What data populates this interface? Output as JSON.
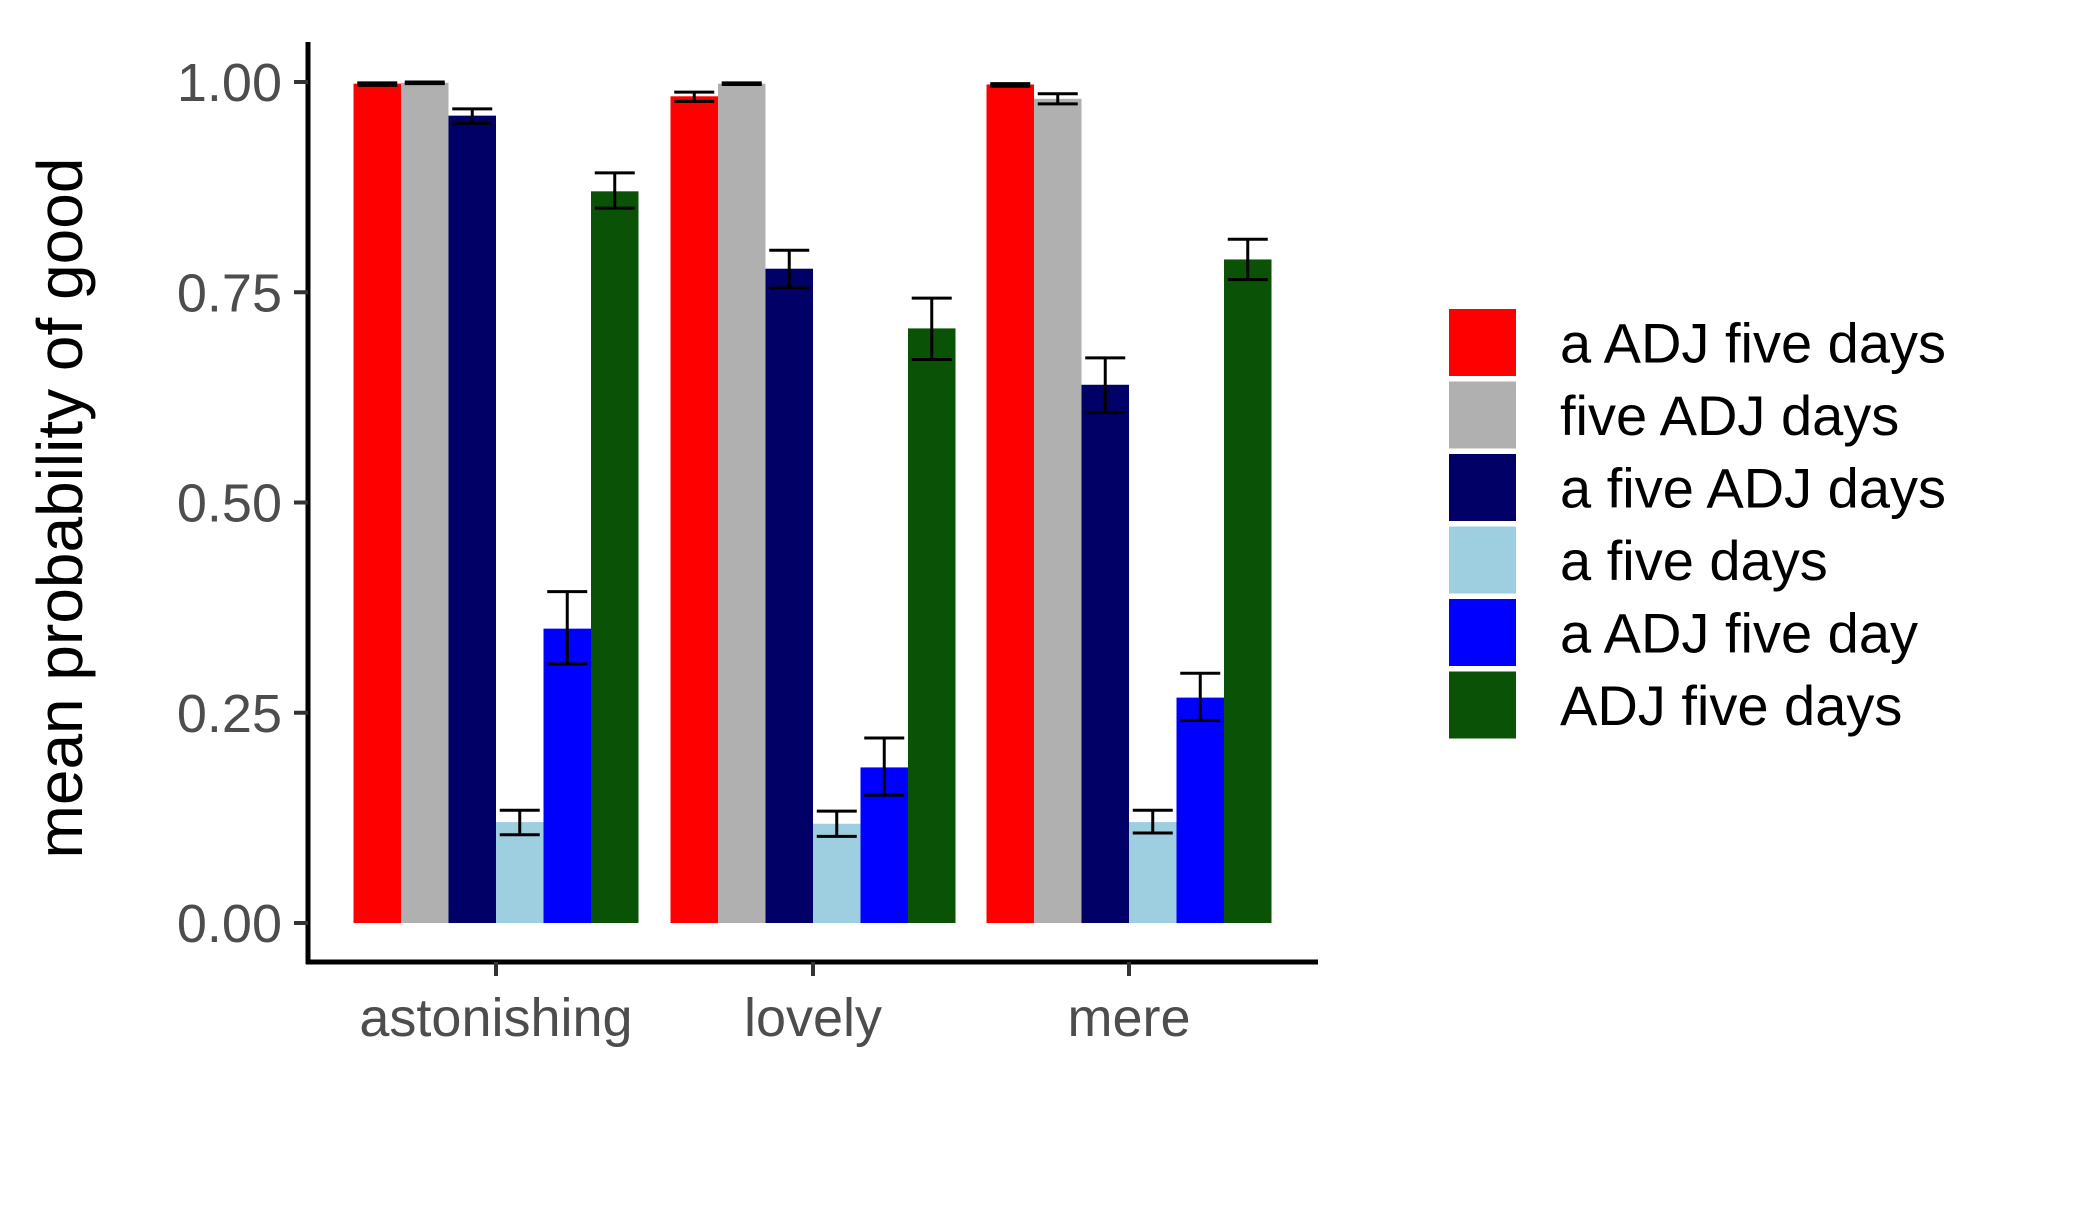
{
  "chart_data": {
    "type": "bar",
    "title": "",
    "xlabel": "",
    "ylabel": "mean probability of good",
    "ylim": [
      0,
      1.0
    ],
    "yticks": [
      "0.00",
      "0.25",
      "0.50",
      "0.75",
      "1.00"
    ],
    "categories": [
      "astonishing",
      "lovely",
      "mere"
    ],
    "grid": false,
    "legend_position": "right",
    "series": [
      {
        "name": "a ADJ five days",
        "color": "#ff0000",
        "values": [
          0.998,
          0.983,
          0.997
        ],
        "err_low": [
          0.996,
          0.977,
          0.995
        ],
        "err_high": [
          0.999,
          0.988,
          0.998
        ]
      },
      {
        "name": "five ADJ days",
        "color": "#b0b0b0",
        "values": [
          0.999,
          0.998,
          0.98
        ],
        "err_low": [
          0.998,
          0.997,
          0.974
        ],
        "err_high": [
          1.0,
          0.999,
          0.986
        ]
      },
      {
        "name": "a five ADJ days",
        "color": "#000066",
        "values": [
          0.96,
          0.778,
          0.64
        ],
        "err_low": [
          0.951,
          0.755,
          0.607
        ],
        "err_high": [
          0.968,
          0.8,
          0.672
        ]
      },
      {
        "name": "a five days",
        "color": "#9ecfe1",
        "values": [
          0.12,
          0.118,
          0.12
        ],
        "err_low": [
          0.105,
          0.103,
          0.107
        ],
        "err_high": [
          0.134,
          0.133,
          0.134
        ]
      },
      {
        "name": "a ADJ five day",
        "color": "#0000ff",
        "values": [
          0.35,
          0.185,
          0.268
        ],
        "err_low": [
          0.308,
          0.152,
          0.241
        ],
        "err_high": [
          0.394,
          0.22,
          0.297
        ]
      },
      {
        "name": "ADJ five days",
        "color": "#0a5205",
        "values": [
          0.87,
          0.707,
          0.789
        ],
        "err_low": [
          0.85,
          0.67,
          0.765
        ],
        "err_high": [
          0.892,
          0.743,
          0.813
        ]
      }
    ]
  }
}
